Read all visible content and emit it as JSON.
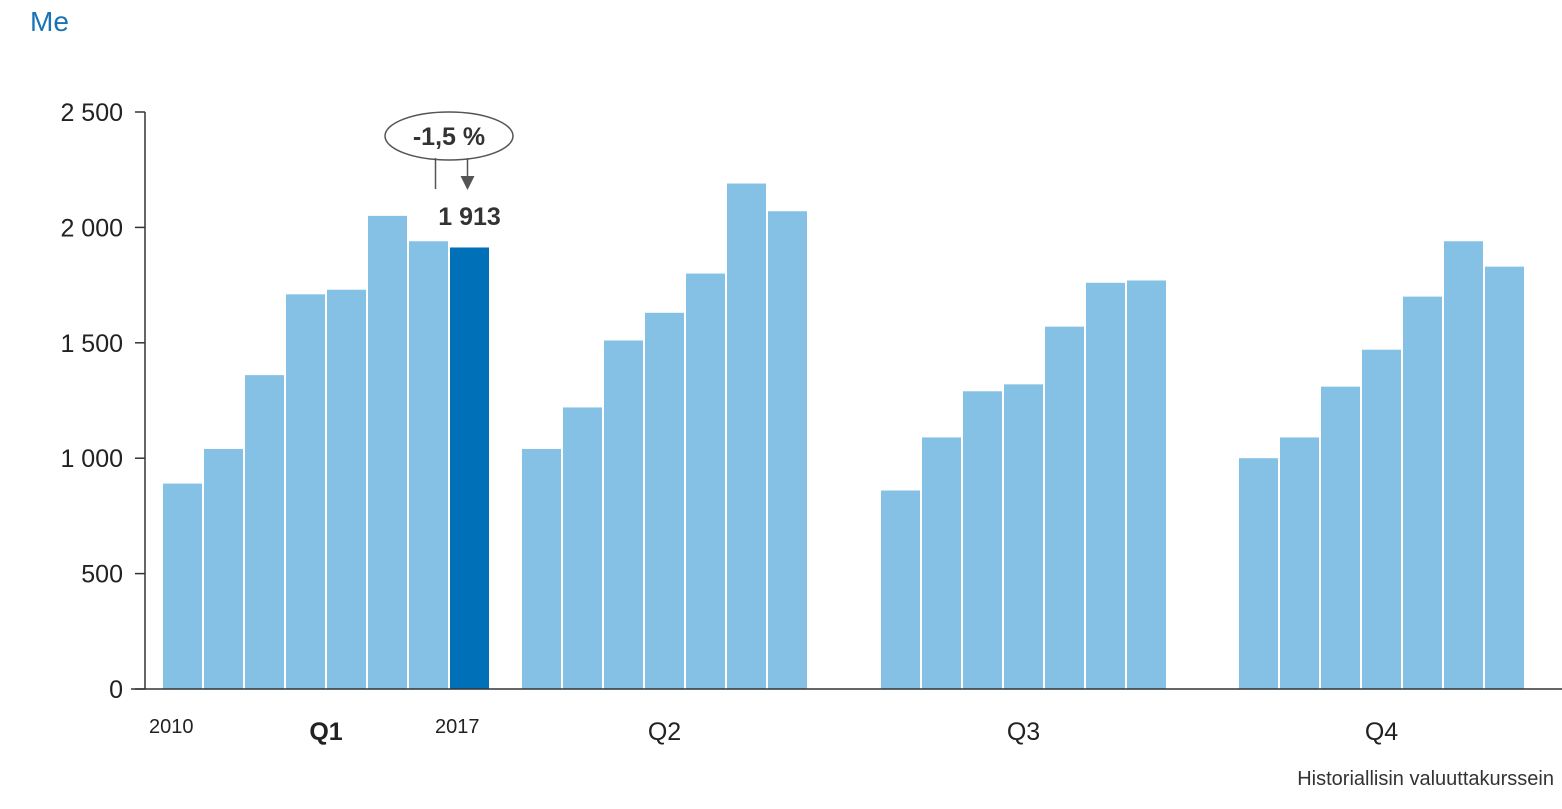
{
  "unit_label": "Me",
  "footnote": "Historiallisin valuuttakurssein",
  "colors": {
    "bar": "#85c1e5",
    "highlight": "#0070b8",
    "axis": "#333333",
    "unit": "#1a73b5"
  },
  "chart_data": {
    "type": "bar",
    "ylim": [
      0,
      2500
    ],
    "y_ticks": [
      "0",
      "500",
      "1 000",
      "1 500",
      "2 000",
      "2 500"
    ],
    "y_tick_values": [
      0,
      500,
      1000,
      1500,
      2000,
      2500
    ],
    "grid": false,
    "groups": [
      {
        "label": "Q1",
        "bold": true,
        "values": [
          890,
          1040,
          1360,
          1710,
          1730,
          2050,
          1940,
          1913
        ]
      },
      {
        "label": "Q2",
        "bold": false,
        "values": [
          1040,
          1220,
          1510,
          1630,
          1800,
          2190,
          2070
        ]
      },
      {
        "label": "Q3",
        "bold": false,
        "values": [
          860,
          1090,
          1290,
          1320,
          1570,
          1760,
          1770
        ]
      },
      {
        "label": "Q4",
        "bold": false,
        "values": [
          1000,
          1090,
          1310,
          1470,
          1700,
          1940,
          1830
        ]
      }
    ],
    "highlight": {
      "group": 0,
      "index": 7
    },
    "year_labels": {
      "first": "2010",
      "last": "2017"
    },
    "annotations": {
      "change": "-1,5 %",
      "value": "1 913"
    }
  }
}
